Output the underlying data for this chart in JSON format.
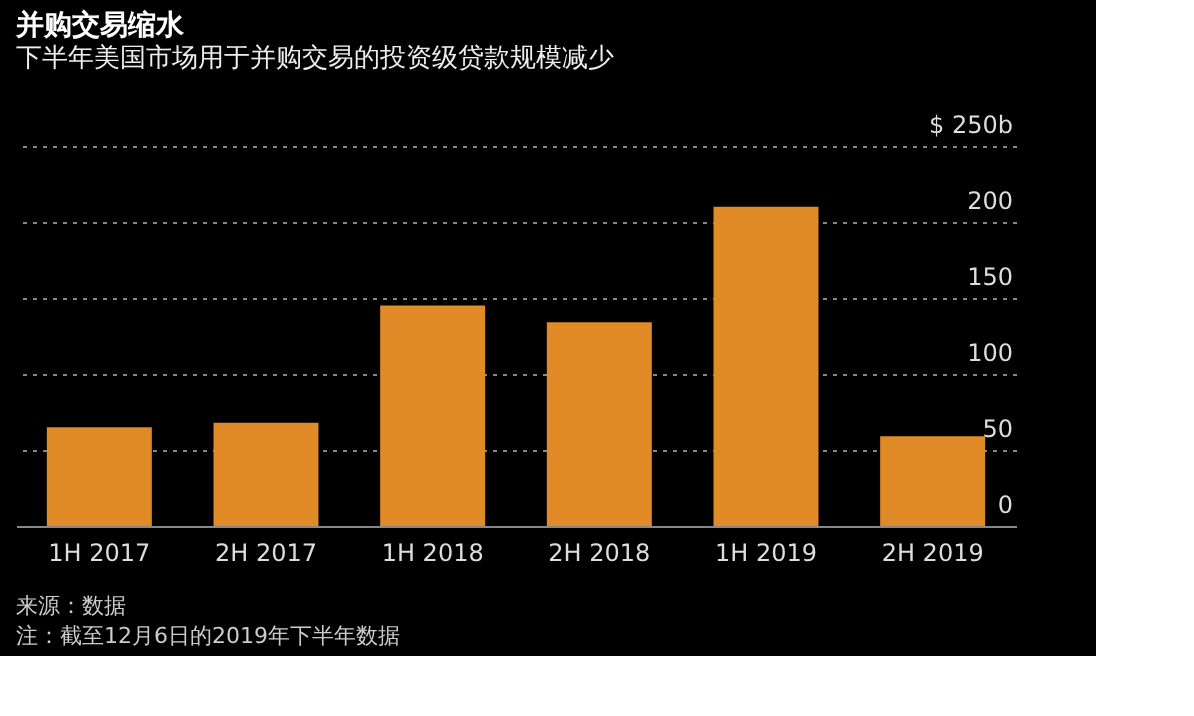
{
  "chart_data": {
    "type": "bar",
    "title": "并购交易缩水",
    "subtitle": "下半年美国市场用于并购交易的投资级贷款规模减少",
    "categories": [
      "1H 2017",
      "2H 2017",
      "1H 2018",
      "2H 2018",
      "1H 2019",
      "2H 2019"
    ],
    "values": [
      65,
      68,
      145,
      134,
      210,
      59
    ],
    "color": "#e08a28",
    "ylim": [
      0,
      250
    ],
    "yticks": [
      0,
      50,
      100,
      150,
      200,
      {
        "value": 250,
        "label": "$ 250b"
      }
    ],
    "grid": "y",
    "annotations": [
      "来源：数据",
      "注：截至12月6日的2019年下半年数据"
    ]
  }
}
